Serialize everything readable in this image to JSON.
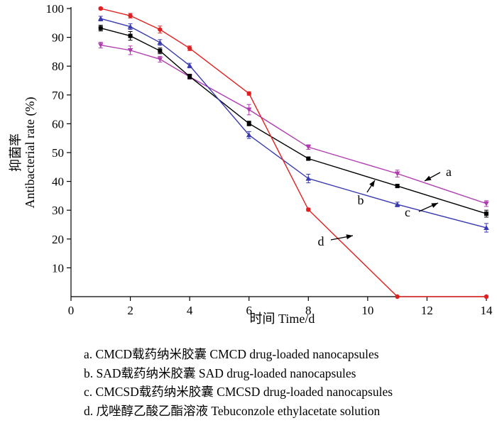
{
  "chart_data": {
    "type": "line",
    "ylabel_cn": "抑菌率",
    "ylabel": "Antibacterial rate (%)",
    "xlabel": "时间 Time/d",
    "xlim": [
      0,
      14
    ],
    "ylim": [
      0,
      100
    ],
    "xticks": [
      0,
      2,
      4,
      6,
      8,
      10,
      12,
      14
    ],
    "yticks": [
      10,
      20,
      30,
      40,
      50,
      60,
      70,
      80,
      90,
      100
    ],
    "series": [
      {
        "name": "a",
        "legend": "a. CMCD载药纳米胶囊 CMCD drug-loaded nanocapsules",
        "color": "#b03cb0",
        "marker": "triangle-down",
        "x": [
          1,
          2,
          3,
          4,
          6,
          8,
          11,
          14
        ],
        "values": [
          87.3,
          85.5,
          82.4,
          76.3,
          64.9,
          51.9,
          42.7,
          32.3
        ],
        "errors": [
          1.0,
          1.5,
          1.0,
          0.8,
          1.8,
          0.8,
          1.2,
          1.0
        ]
      },
      {
        "name": "b",
        "legend": "b. SAD载药纳米胶囊 SAD drug-loaded nanocapsules",
        "color": "#000000",
        "marker": "square",
        "x": [
          1,
          2,
          3,
          4,
          6,
          8,
          11,
          14
        ],
        "values": [
          93.2,
          90.5,
          85.3,
          76.4,
          60.1,
          47.9,
          38.4,
          28.8
        ],
        "errors": [
          1.0,
          1.5,
          1.0,
          0.8,
          0.8,
          0.5,
          0.6,
          1.2
        ]
      },
      {
        "name": "c",
        "legend": "c. CMCSD载药纳米胶囊 CMCSD drug-loaded nanocapsules",
        "color": "#3a3ab0",
        "marker": "triangle-up",
        "x": [
          1,
          2,
          3,
          4,
          6,
          8,
          11,
          14
        ],
        "values": [
          96.5,
          93.7,
          88.2,
          80.2,
          56.1,
          41.0,
          32.0,
          23.9
        ],
        "errors": [
          0.8,
          1.0,
          1.0,
          0.8,
          1.2,
          1.5,
          0.8,
          1.5
        ]
      },
      {
        "name": "d",
        "legend": "d. 戊唑醇乙酸乙酯溶液 Tebuconzole ethylacetate solution",
        "color": "#e02020",
        "marker": "circle",
        "x": [
          1,
          2,
          3,
          4,
          6,
          8,
          11,
          14
        ],
        "values": [
          100,
          97.5,
          92.7,
          86.2,
          70.5,
          30.2,
          0,
          0
        ],
        "errors": [
          0.4,
          0.8,
          1.2,
          0.8,
          0.6,
          0.5,
          0,
          0
        ]
      }
    ],
    "annotations": [
      {
        "label": "a",
        "target_x": 11.0,
        "target_y": 38.0
      },
      {
        "label": "b",
        "target_x": 10.5,
        "target_y": 37.3
      },
      {
        "label": "c",
        "target_x": 12.9,
        "target_y": 26.0
      },
      {
        "label": "d",
        "target_x": 9.3,
        "target_y": 12.0
      }
    ]
  }
}
